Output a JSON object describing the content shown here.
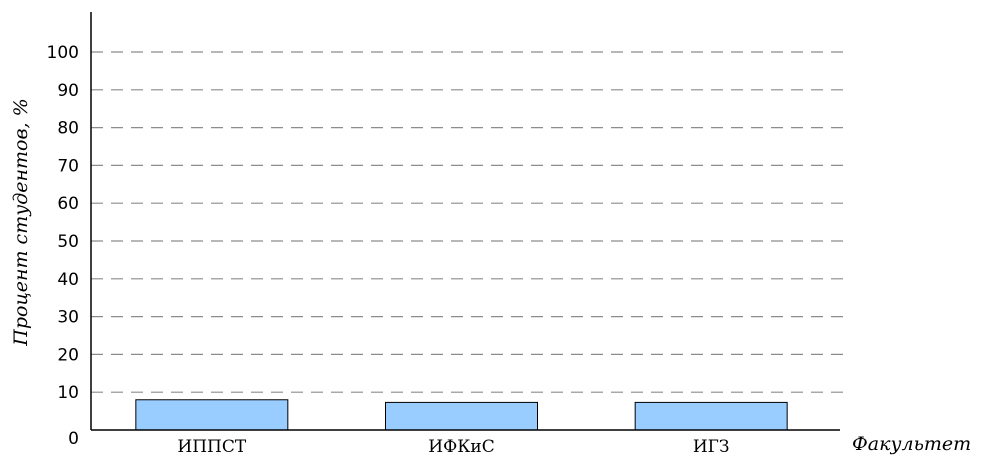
{
  "chart_data": {
    "type": "bar",
    "categories": [
      "ИППСТ",
      "ИФКиС",
      "ИГЗ"
    ],
    "values": [
      8,
      7.3,
      7.3
    ],
    "xlabel": "Факультет",
    "ylabel": "Процент студентов, %",
    "ylim": [
      0,
      100
    ],
    "yticks": [
      0,
      10,
      20,
      30,
      40,
      50,
      60,
      70,
      80,
      90,
      100
    ],
    "grid": true,
    "bar_color": "#99ccff"
  }
}
